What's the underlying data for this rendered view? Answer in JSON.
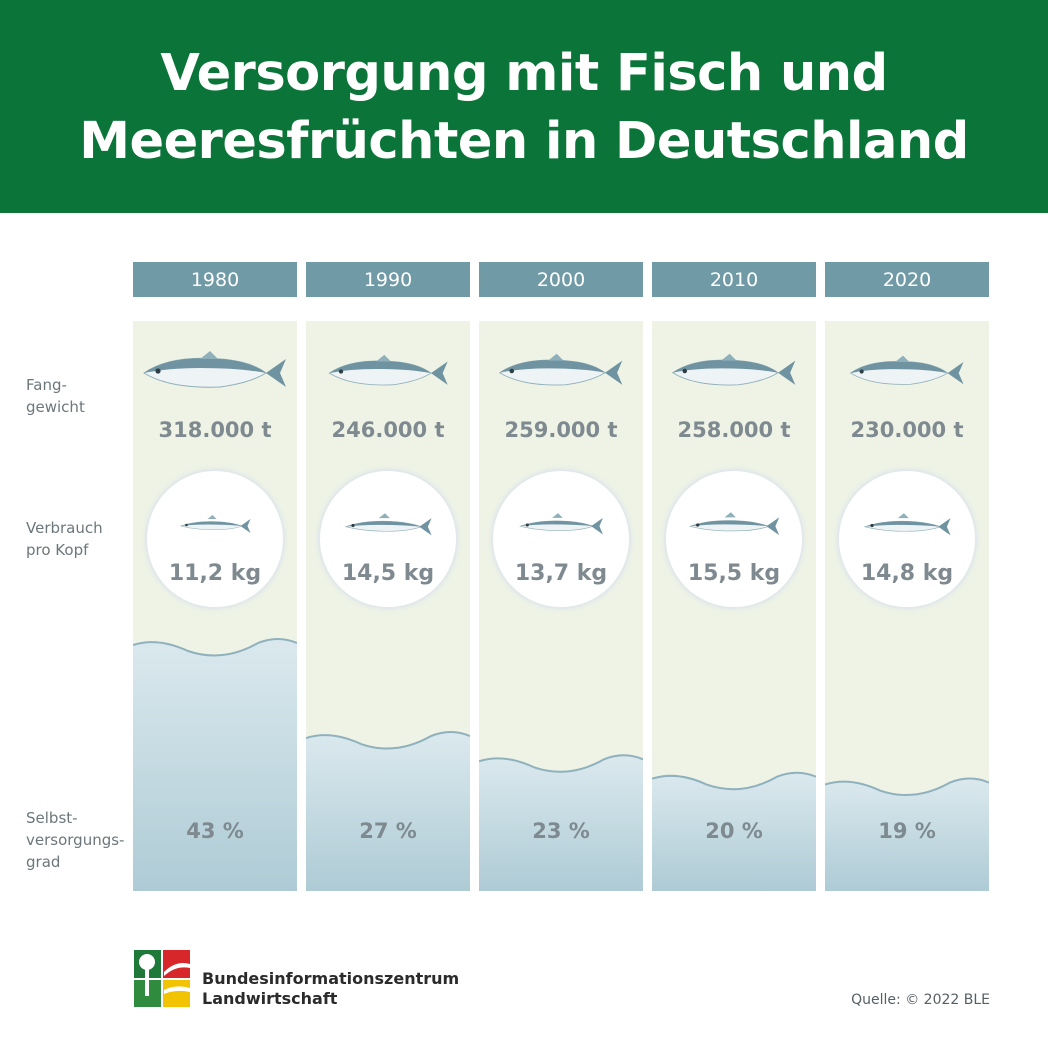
{
  "header": {
    "title_line1": "Versorgung mit Fisch und",
    "title_line2": "Meeresfrüchten in Deutschland"
  },
  "row_labels": {
    "catch": "Fang-\ngewicht",
    "consumption": "Verbrauch\npro Kopf",
    "self_sufficiency": "Selbst-\nversorgungs-\ngrad"
  },
  "chart_data": {
    "type": "table",
    "categories": [
      "1980",
      "1990",
      "2000",
      "2010",
      "2020"
    ],
    "series": [
      {
        "name": "Fanggewicht",
        "unit": "t",
        "values": [
          318000,
          246000,
          259000,
          258000,
          230000
        ],
        "labels": [
          "318.000 t",
          "246.000 t",
          "259.000 t",
          "258.000 t",
          "230.000 t"
        ]
      },
      {
        "name": "Verbrauch pro Kopf",
        "unit": "kg",
        "values": [
          11.2,
          14.5,
          13.7,
          15.5,
          14.8
        ],
        "labels": [
          "11,2 kg",
          "14,5 kg",
          "13,7 kg",
          "15,5 kg",
          "14,8 kg"
        ]
      },
      {
        "name": "Selbstversorgungsgrad",
        "unit": "%",
        "values": [
          43,
          27,
          23,
          20,
          19
        ],
        "labels": [
          "43 %",
          "27 %",
          "23 %",
          "20 %",
          "19 %"
        ]
      }
    ]
  },
  "footer": {
    "org_name": "Bundesinformationszentrum\nLandwirtschaft",
    "source": "Quelle: © 2022 BLE"
  },
  "colors": {
    "header_green": "#0b7438",
    "year_tab": "#6f9aa6",
    "column_bg": "#eef3e6",
    "water": "#b7d0d9"
  }
}
